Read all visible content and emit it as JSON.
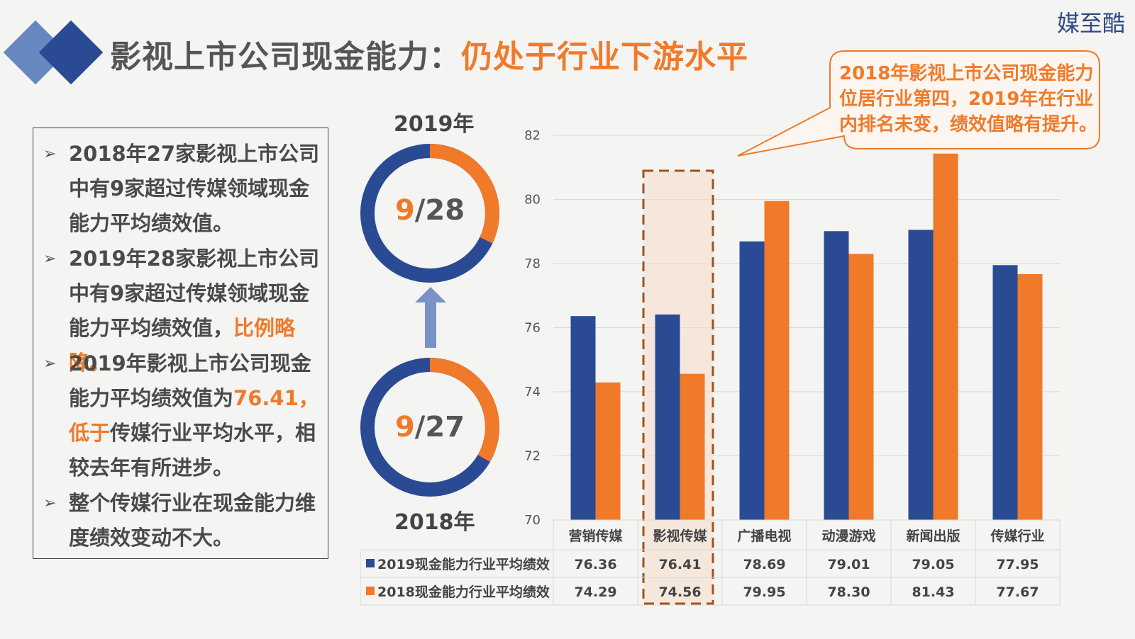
{
  "logo": "媒至酷",
  "title": {
    "main": "影视上市公司现金能力：",
    "highlight": "仍处于行业下游水平"
  },
  "bullets": [
    {
      "parts": [
        {
          "text": "2018年27家影视上市公司中有9家超过传媒领域现金能力平均绩效值。",
          "highlight": false
        }
      ]
    },
    {
      "parts": [
        {
          "text": "2019年28家影视上市公司中有9家超过传媒领域现金能力平均绩效值，",
          "highlight": false
        },
        {
          "text": "比例略降。",
          "highlight": true
        }
      ]
    },
    {
      "parts": [
        {
          "text": "2019年影视上市公司现金能力平均绩效值为",
          "highlight": false
        },
        {
          "text": "76.41，低于",
          "highlight": true
        },
        {
          "text": "传媒行业平均水平，相较去年有所进步。",
          "highlight": false
        }
      ]
    },
    {
      "parts": [
        {
          "text": "整个传媒行业在现金能力维度绩效变动不大。",
          "highlight": false
        }
      ]
    }
  ],
  "donuts": {
    "top": {
      "year_label": "2019年",
      "numerator": "9",
      "denominator": "/28",
      "fraction": 0.3214
    },
    "bottom": {
      "year_label": "2018年",
      "numerator": "9",
      "denominator": "/27",
      "fraction": 0.3333
    }
  },
  "callout": "2018年影视上市公司现金能力位居行业第四，2019年在行业内排名未变，绩效值略有提升。",
  "colors": {
    "blue": "#2a4a94",
    "orange": "#f07a2a",
    "highlight_box": "#a0531f"
  },
  "chart_data": {
    "type": "bar",
    "categories": [
      "营销传媒",
      "影视传媒",
      "广播电视",
      "动漫游戏",
      "新闻出版",
      "传媒行业"
    ],
    "series": [
      {
        "name": "2019现金能力行业平均绩效",
        "values": [
          76.36,
          76.41,
          78.69,
          79.01,
          79.05,
          77.95
        ],
        "value_labels": [
          "76.36",
          "76.41",
          "78.69",
          "79.01",
          "79.05",
          "77.95"
        ]
      },
      {
        "name": "2018现金能力行业平均绩效",
        "values": [
          74.29,
          74.56,
          79.95,
          78.3,
          81.43,
          77.67
        ],
        "value_labels": [
          "74.29",
          "74.56",
          "79.95",
          "78.30",
          "81.43",
          "77.67"
        ]
      }
    ],
    "ylim": [
      70,
      82
    ],
    "yticks": [
      "70",
      "72",
      "74",
      "76",
      "78",
      "80",
      "82"
    ],
    "highlight_category": "影视传媒",
    "grid": true,
    "data_table": true
  }
}
